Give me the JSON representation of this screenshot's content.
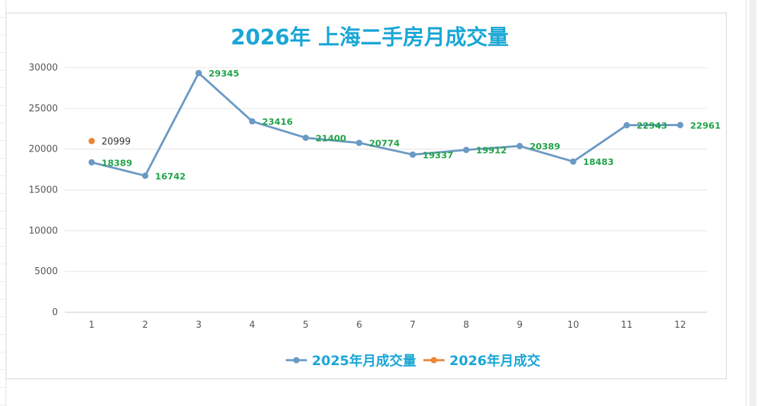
{
  "chart_data": {
    "type": "line",
    "title": "2026年 上海二手房月成交量",
    "xlabel": "",
    "ylabel": "",
    "categories": [
      "1",
      "2",
      "3",
      "4",
      "5",
      "6",
      "7",
      "8",
      "9",
      "10",
      "11",
      "12"
    ],
    "ylim": [
      0,
      30000
    ],
    "yticks": [
      0,
      5000,
      10000,
      15000,
      20000,
      25000,
      30000
    ],
    "grid": true,
    "legend_position": "bottom",
    "series": [
      {
        "name": "2025年月成交量",
        "color": "#6b9ac4",
        "values": [
          18389,
          16742,
          29345,
          23416,
          21400,
          20774,
          19337,
          19912,
          20389,
          18483,
          22943,
          22961
        ]
      },
      {
        "name": "2026年月成交",
        "color": "#e8863a",
        "values": [
          20999,
          null,
          null,
          null,
          null,
          null,
          null,
          null,
          null,
          null,
          null,
          null
        ]
      }
    ],
    "label_colors": {
      "2025": "#22a34a",
      "2026": "#333333"
    }
  }
}
